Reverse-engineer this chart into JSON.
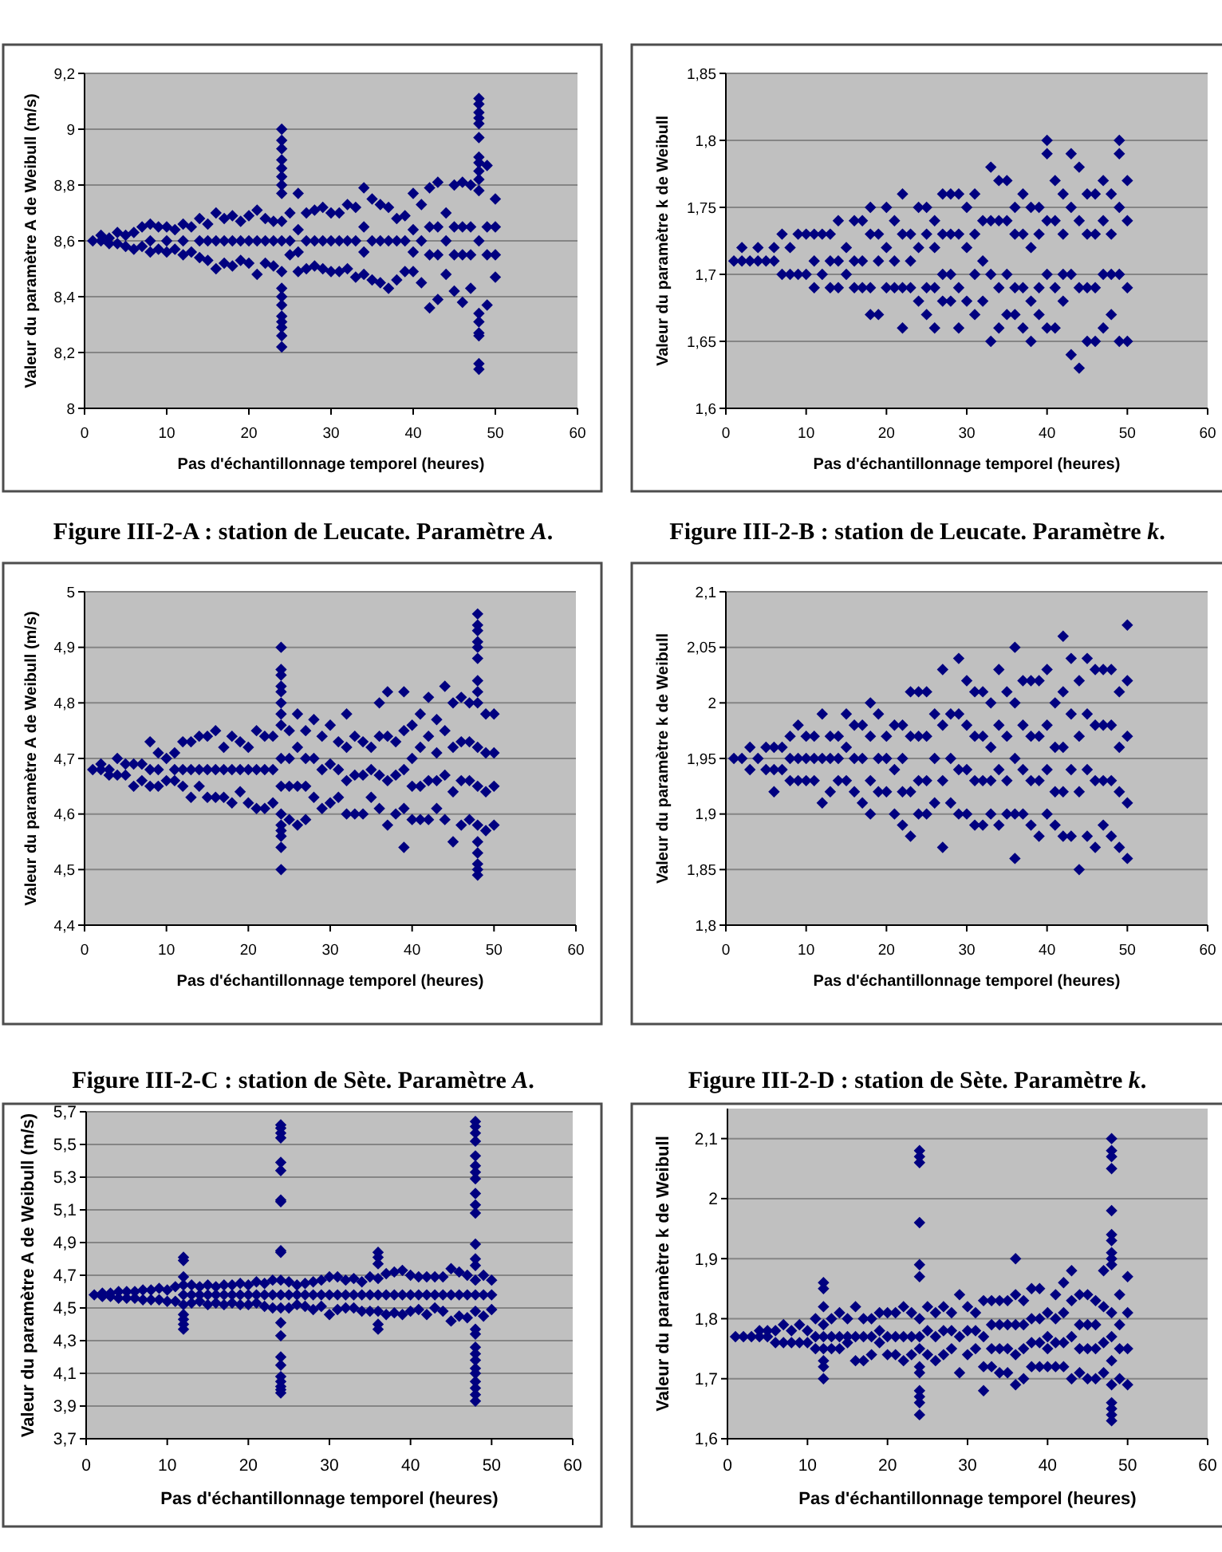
{
  "chart_data": [
    {
      "type": "scatter",
      "xlabel": "Pas d'échantillonnage temporel (heures)",
      "ylabel": "Valeur du paramètre A de Weibull (m/s)",
      "annotations": [
        "Figure III-2-A : station de Leucate. Paramètre A."
      ],
      "xlim": [
        0,
        60
      ],
      "xticks": [
        0,
        10,
        20,
        30,
        40,
        50,
        60
      ],
      "ylim": [
        8,
        9.2
      ],
      "yticks": [
        8,
        {
          "value": 8.2,
          "label": "8,2"
        },
        {
          "value": 8.4,
          "label": "8,4"
        },
        {
          "value": 8.6,
          "label": "8,6"
        },
        {
          "value": 8.8,
          "label": "8,8"
        },
        9,
        {
          "value": 9.2,
          "label": "9,2"
        }
      ],
      "grid": "y",
      "marker": "diamond",
      "color": "#000080",
      "x": [
        1,
        2,
        2,
        3,
        3,
        4,
        4,
        5,
        5,
        6,
        6,
        7,
        7,
        8,
        8,
        8,
        9,
        9,
        10,
        10,
        10,
        11,
        11,
        12,
        12,
        12,
        13,
        13,
        14,
        14,
        14,
        15,
        15,
        15,
        16,
        16,
        16,
        17,
        17,
        17,
        18,
        18,
        18,
        19,
        19,
        19,
        20,
        20,
        20,
        21,
        21,
        21,
        22,
        22,
        22,
        23,
        23,
        23,
        24,
        24,
        24,
        24,
        24,
        24,
        24,
        24,
        24,
        24,
        24,
        24,
        24,
        24,
        24,
        24,
        24,
        24,
        24,
        25,
        25,
        25,
        26,
        26,
        26,
        26,
        27,
        27,
        27,
        28,
        28,
        28,
        29,
        29,
        29,
        30,
        30,
        30,
        31,
        31,
        31,
        32,
        32,
        32,
        33,
        33,
        33,
        34,
        34,
        34,
        34,
        35,
        35,
        35,
        36,
        36,
        36,
        37,
        37,
        37,
        38,
        38,
        38,
        39,
        39,
        39,
        40,
        40,
        40,
        40,
        41,
        41,
        41,
        42,
        42,
        42,
        42,
        43,
        43,
        43,
        43,
        44,
        44,
        44,
        45,
        45,
        45,
        45,
        46,
        46,
        46,
        46,
        47,
        47,
        47,
        47,
        48,
        48,
        48,
        48,
        48,
        48,
        48,
        48,
        48,
        48,
        48,
        48,
        48,
        48,
        48,
        48,
        48,
        48,
        49,
        49,
        49,
        49,
        50,
        50,
        50,
        50
      ],
      "values": [
        8.6,
        8.62,
        8.6,
        8.61,
        8.59,
        8.63,
        8.59,
        8.62,
        8.58,
        8.63,
        8.57,
        8.65,
        8.58,
        8.66,
        8.6,
        8.56,
        8.65,
        8.57,
        8.65,
        8.6,
        8.56,
        8.64,
        8.57,
        8.66,
        8.6,
        8.55,
        8.65,
        8.56,
        8.68,
        8.6,
        8.54,
        8.66,
        8.6,
        8.53,
        8.7,
        8.6,
        8.5,
        8.68,
        8.6,
        8.52,
        8.69,
        8.6,
        8.51,
        8.67,
        8.6,
        8.53,
        8.69,
        8.6,
        8.52,
        8.71,
        8.6,
        8.48,
        8.68,
        8.6,
        8.52,
        8.67,
        8.6,
        8.51,
        9,
        8.96,
        8.93,
        8.89,
        8.86,
        8.83,
        8.8,
        8.77,
        8.67,
        8.6,
        8.49,
        8.43,
        8.4,
        8.37,
        8.33,
        8.31,
        8.29,
        8.26,
        8.22,
        8.7,
        8.6,
        8.55,
        8.77,
        8.64,
        8.56,
        8.49,
        8.7,
        8.6,
        8.5,
        8.71,
        8.6,
        8.51,
        8.72,
        8.6,
        8.5,
        8.7,
        8.6,
        8.49,
        8.7,
        8.6,
        8.49,
        8.73,
        8.6,
        8.5,
        8.72,
        8.6,
        8.47,
        8.79,
        8.65,
        8.56,
        8.48,
        8.75,
        8.6,
        8.46,
        8.73,
        8.6,
        8.45,
        8.72,
        8.6,
        8.43,
        8.68,
        8.6,
        8.46,
        8.69,
        8.6,
        8.49,
        8.77,
        8.64,
        8.56,
        8.49,
        8.73,
        8.6,
        8.45,
        8.79,
        8.65,
        8.55,
        8.36,
        8.81,
        8.65,
        8.55,
        8.39,
        8.7,
        8.6,
        8.48,
        8.8,
        8.65,
        8.55,
        8.42,
        8.81,
        8.65,
        8.55,
        8.38,
        8.8,
        8.65,
        8.55,
        8.43,
        9.11,
        9.09,
        9.06,
        9.04,
        9.02,
        8.97,
        8.9,
        8.88,
        8.85,
        8.82,
        8.78,
        8.6,
        8.34,
        8.31,
        8.27,
        8.26,
        8.16,
        8.14,
        8.87,
        8.65,
        8.55,
        8.37,
        8.75,
        8.65,
        8.55,
        8.47
      ]
    },
    {
      "type": "scatter",
      "xlabel": "Pas d'échantillonnage temporel (heures)",
      "ylabel": "Valeur du paramètre k de Weibull",
      "annotations": [
        "Figure III-2-B : station de Leucate. Paramètre k."
      ],
      "xlim": [
        0,
        60
      ],
      "xticks": [
        0,
        10,
        20,
        30,
        40,
        50,
        60
      ],
      "ylim": [
        1.6,
        1.85
      ],
      "yticks": [
        {
          "value": 1.6,
          "label": "1,6"
        },
        {
          "value": 1.65,
          "label": "1,65"
        },
        {
          "value": 1.7,
          "label": "1,7"
        },
        {
          "value": 1.75,
          "label": "1,75"
        },
        {
          "value": 1.8,
          "label": "1,8"
        },
        {
          "value": 1.85,
          "label": "1,85"
        }
      ],
      "grid": "y",
      "marker": "diamond",
      "color": "#000080",
      "x": [
        1,
        2,
        2,
        3,
        4,
        4,
        5,
        6,
        6,
        7,
        7,
        8,
        8,
        9,
        9,
        10,
        10,
        11,
        11,
        11,
        12,
        12,
        13,
        13,
        13,
        14,
        14,
        14,
        15,
        15,
        16,
        16,
        16,
        17,
        17,
        17,
        18,
        18,
        18,
        18,
        19,
        19,
        19,
        20,
        20,
        20,
        21,
        21,
        21,
        22,
        22,
        22,
        22,
        23,
        23,
        23,
        24,
        24,
        24,
        25,
        25,
        25,
        25,
        26,
        26,
        26,
        26,
        27,
        27,
        27,
        27,
        28,
        28,
        28,
        28,
        29,
        29,
        29,
        29,
        30,
        30,
        30,
        31,
        31,
        31,
        31,
        32,
        32,
        32,
        33,
        33,
        33,
        33,
        34,
        34,
        34,
        34,
        35,
        35,
        35,
        35,
        36,
        36,
        36,
        36,
        37,
        37,
        37,
        37,
        38,
        38,
        38,
        38,
        39,
        39,
        39,
        39,
        40,
        40,
        40,
        40,
        40,
        41,
        41,
        41,
        41,
        42,
        42,
        42,
        42,
        43,
        43,
        43,
        43,
        44,
        44,
        44,
        44,
        45,
        45,
        45,
        45,
        46,
        46,
        46,
        46,
        47,
        47,
        47,
        47,
        48,
        48,
        48,
        48,
        49,
        49,
        49,
        49,
        49,
        50,
        50,
        50,
        50
      ],
      "values": [
        1.71,
        1.72,
        1.71,
        1.71,
        1.72,
        1.71,
        1.71,
        1.72,
        1.71,
        1.73,
        1.7,
        1.72,
        1.7,
        1.73,
        1.7,
        1.73,
        1.7,
        1.73,
        1.71,
        1.69,
        1.73,
        1.7,
        1.73,
        1.71,
        1.69,
        1.74,
        1.71,
        1.69,
        1.72,
        1.7,
        1.74,
        1.71,
        1.69,
        1.74,
        1.71,
        1.69,
        1.75,
        1.73,
        1.69,
        1.67,
        1.73,
        1.71,
        1.67,
        1.75,
        1.72,
        1.69,
        1.74,
        1.71,
        1.69,
        1.76,
        1.73,
        1.69,
        1.66,
        1.73,
        1.71,
        1.69,
        1.75,
        1.72,
        1.68,
        1.75,
        1.73,
        1.69,
        1.67,
        1.74,
        1.72,
        1.69,
        1.66,
        1.76,
        1.73,
        1.7,
        1.68,
        1.76,
        1.73,
        1.7,
        1.68,
        1.76,
        1.73,
        1.69,
        1.66,
        1.75,
        1.72,
        1.68,
        1.76,
        1.73,
        1.7,
        1.67,
        1.74,
        1.71,
        1.68,
        1.78,
        1.74,
        1.7,
        1.65,
        1.77,
        1.74,
        1.69,
        1.66,
        1.77,
        1.74,
        1.7,
        1.67,
        1.75,
        1.73,
        1.69,
        1.67,
        1.76,
        1.73,
        1.69,
        1.66,
        1.75,
        1.72,
        1.68,
        1.65,
        1.75,
        1.73,
        1.69,
        1.67,
        1.8,
        1.79,
        1.74,
        1.7,
        1.66,
        1.77,
        1.74,
        1.69,
        1.66,
        1.76,
        1.73,
        1.7,
        1.68,
        1.79,
        1.75,
        1.7,
        1.64,
        1.78,
        1.74,
        1.69,
        1.63,
        1.76,
        1.73,
        1.69,
        1.65,
        1.76,
        1.73,
        1.69,
        1.65,
        1.77,
        1.74,
        1.7,
        1.66,
        1.76,
        1.73,
        1.7,
        1.67,
        1.8,
        1.79,
        1.75,
        1.7,
        1.65,
        1.77,
        1.74,
        1.69,
        1.65
      ]
    },
    {
      "type": "scatter",
      "xlabel": "Pas d'échantillonnage temporel (heures)",
      "ylabel": "Valeur du paramètre A de Weibull (m/s)",
      "annotations": [
        "Figure III-2-C : station de Sète. Paramètre A."
      ],
      "xlim": [
        0,
        60
      ],
      "xticks": [
        0,
        10,
        20,
        30,
        40,
        50,
        60
      ],
      "ylim": [
        4.4,
        5
      ],
      "yticks": [
        {
          "value": 4.4,
          "label": "4,4"
        },
        {
          "value": 4.5,
          "label": "4,5"
        },
        {
          "value": 4.6,
          "label": "4,6"
        },
        {
          "value": 4.7,
          "label": "4,7"
        },
        {
          "value": 4.8,
          "label": "4,8"
        },
        {
          "value": 4.9,
          "label": "4,9"
        },
        5
      ],
      "grid": "y",
      "marker": "diamond",
      "color": "#000080",
      "x": [
        1,
        2,
        2,
        3,
        3,
        4,
        4,
        5,
        5,
        6,
        6,
        7,
        7,
        8,
        8,
        8,
        9,
        9,
        9,
        10,
        10,
        11,
        11,
        11,
        12,
        12,
        12,
        13,
        13,
        13,
        14,
        14,
        14,
        15,
        15,
        15,
        16,
        16,
        16,
        17,
        17,
        17,
        18,
        18,
        18,
        19,
        19,
        19,
        20,
        20,
        20,
        21,
        21,
        21,
        22,
        22,
        22,
        23,
        23,
        23,
        24,
        24,
        24,
        24,
        24,
        24,
        24,
        24,
        24,
        24,
        24,
        24,
        24,
        24,
        24,
        24,
        25,
        25,
        25,
        25,
        26,
        26,
        26,
        26,
        27,
        27,
        27,
        27,
        28,
        28,
        28,
        29,
        29,
        29,
        30,
        30,
        30,
        31,
        31,
        31,
        32,
        32,
        32,
        32,
        33,
        33,
        33,
        34,
        34,
        34,
        35,
        35,
        35,
        36,
        36,
        36,
        36,
        37,
        37,
        37,
        37,
        38,
        38,
        38,
        39,
        39,
        39,
        39,
        39,
        40,
        40,
        40,
        40,
        41,
        41,
        41,
        41,
        42,
        42,
        42,
        42,
        43,
        43,
        43,
        43,
        44,
        44,
        44,
        44,
        45,
        45,
        45,
        45,
        46,
        46,
        46,
        46,
        47,
        47,
        47,
        47,
        48,
        48,
        48,
        48,
        48,
        48,
        48,
        48,
        48,
        48,
        48,
        48,
        48,
        48,
        48,
        48,
        48,
        49,
        49,
        49,
        49,
        50,
        50,
        50,
        50
      ],
      "values": [
        4.68,
        4.69,
        4.68,
        4.68,
        4.67,
        4.7,
        4.67,
        4.69,
        4.67,
        4.69,
        4.65,
        4.69,
        4.66,
        4.73,
        4.68,
        4.65,
        4.71,
        4.68,
        4.65,
        4.7,
        4.66,
        4.71,
        4.68,
        4.66,
        4.73,
        4.68,
        4.65,
        4.73,
        4.68,
        4.63,
        4.74,
        4.68,
        4.65,
        4.74,
        4.68,
        4.63,
        4.75,
        4.68,
        4.63,
        4.72,
        4.68,
        4.63,
        4.74,
        4.68,
        4.62,
        4.73,
        4.68,
        4.64,
        4.72,
        4.68,
        4.62,
        4.75,
        4.68,
        4.61,
        4.74,
        4.68,
        4.61,
        4.74,
        4.68,
        4.62,
        4.9,
        4.86,
        4.85,
        4.83,
        4.82,
        4.8,
        4.78,
        4.76,
        4.7,
        4.65,
        4.6,
        4.58,
        4.57,
        4.56,
        4.54,
        4.5,
        4.75,
        4.7,
        4.65,
        4.59,
        4.78,
        4.72,
        4.65,
        4.58,
        4.75,
        4.7,
        4.65,
        4.59,
        4.77,
        4.7,
        4.63,
        4.74,
        4.68,
        4.61,
        4.76,
        4.69,
        4.62,
        4.73,
        4.68,
        4.63,
        4.78,
        4.72,
        4.66,
        4.6,
        4.74,
        4.67,
        4.6,
        4.73,
        4.67,
        4.6,
        4.72,
        4.68,
        4.63,
        4.8,
        4.74,
        4.67,
        4.61,
        4.82,
        4.74,
        4.66,
        4.58,
        4.73,
        4.67,
        4.6,
        4.82,
        4.75,
        4.68,
        4.61,
        4.54,
        4.76,
        4.7,
        4.65,
        4.59,
        4.78,
        4.72,
        4.65,
        4.59,
        4.81,
        4.74,
        4.66,
        4.59,
        4.77,
        4.71,
        4.66,
        4.61,
        4.83,
        4.75,
        4.67,
        4.59,
        4.8,
        4.72,
        4.64,
        4.55,
        4.81,
        4.73,
        4.66,
        4.58,
        4.8,
        4.73,
        4.66,
        4.59,
        4.96,
        4.94,
        4.93,
        4.91,
        4.9,
        4.88,
        4.84,
        4.82,
        4.8,
        4.72,
        4.65,
        4.58,
        4.55,
        4.53,
        4.51,
        4.5,
        4.49,
        4.78,
        4.71,
        4.64,
        4.57,
        4.78,
        4.71,
        4.65,
        4.58
      ]
    },
    {
      "type": "scatter",
      "xlabel": "Pas d'échantillonnage temporel (heures)",
      "ylabel": "Valeur du paramètre k de Weibull",
      "annotations": [
        "Figure III-2-D : station de Sète. Paramètre k."
      ],
      "xlim": [
        0,
        60
      ],
      "xticks": [
        0,
        10,
        20,
        30,
        40,
        50,
        60
      ],
      "ylim": [
        1.8,
        2.1
      ],
      "yticks": [
        {
          "value": 1.8,
          "label": "1,8"
        },
        {
          "value": 1.85,
          "label": "1,85"
        },
        {
          "value": 1.9,
          "label": "1,9"
        },
        {
          "value": 1.95,
          "label": "1,95"
        },
        2,
        {
          "value": 2.05,
          "label": "2,05"
        },
        {
          "value": 2.1,
          "label": "2,1"
        }
      ],
      "grid": "y",
      "marker": "diamond",
      "color": "#000080",
      "x": [
        1,
        2,
        3,
        3,
        4,
        5,
        5,
        6,
        6,
        6,
        7,
        7,
        8,
        8,
        8,
        9,
        9,
        9,
        10,
        10,
        10,
        11,
        11,
        11,
        12,
        12,
        12,
        13,
        13,
        13,
        14,
        14,
        14,
        15,
        15,
        15,
        16,
        16,
        16,
        17,
        17,
        17,
        18,
        18,
        18,
        18,
        19,
        19,
        19,
        20,
        20,
        20,
        21,
        21,
        21,
        22,
        22,
        22,
        22,
        23,
        23,
        23,
        23,
        24,
        24,
        24,
        24,
        25,
        25,
        25,
        25,
        26,
        26,
        26,
        27,
        27,
        27,
        27,
        28,
        28,
        28,
        29,
        29,
        29,
        29,
        30,
        30,
        30,
        30,
        31,
        31,
        31,
        31,
        32,
        32,
        32,
        32,
        33,
        33,
        33,
        33,
        34,
        34,
        34,
        34,
        35,
        35,
        35,
        35,
        36,
        36,
        36,
        36,
        36,
        37,
        37,
        37,
        37,
        38,
        38,
        38,
        38,
        39,
        39,
        39,
        39,
        40,
        40,
        40,
        40,
        41,
        41,
        41,
        41,
        42,
        42,
        42,
        42,
        42,
        43,
        43,
        43,
        43,
        44,
        44,
        44,
        44,
        45,
        45,
        45,
        45,
        46,
        46,
        46,
        46,
        47,
        47,
        47,
        47,
        48,
        48,
        48,
        48,
        49,
        49,
        49,
        49,
        50,
        50,
        50,
        50,
        50
      ],
      "values": [
        1.95,
        1.95,
        1.96,
        1.94,
        1.95,
        1.96,
        1.94,
        1.96,
        1.94,
        1.92,
        1.96,
        1.94,
        1.97,
        1.95,
        1.93,
        1.98,
        1.95,
        1.93,
        1.97,
        1.95,
        1.93,
        1.97,
        1.95,
        1.93,
        1.99,
        1.95,
        1.91,
        1.97,
        1.95,
        1.92,
        1.97,
        1.95,
        1.93,
        1.99,
        1.96,
        1.93,
        1.98,
        1.95,
        1.92,
        1.98,
        1.95,
        1.91,
        2,
        1.97,
        1.93,
        1.9,
        1.99,
        1.95,
        1.92,
        1.97,
        1.95,
        1.92,
        1.98,
        1.94,
        1.9,
        1.98,
        1.95,
        1.92,
        1.89,
        2.01,
        1.97,
        1.92,
        1.88,
        2.01,
        1.97,
        1.93,
        1.9,
        2.01,
        1.97,
        1.93,
        1.9,
        1.99,
        1.95,
        1.91,
        2.03,
        1.98,
        1.93,
        1.87,
        1.99,
        1.95,
        1.91,
        2.04,
        1.99,
        1.94,
        1.9,
        2.02,
        1.98,
        1.94,
        1.9,
        2.01,
        1.97,
        1.93,
        1.89,
        2.01,
        1.97,
        1.93,
        1.89,
        2,
        1.96,
        1.93,
        1.9,
        2.03,
        1.98,
        1.94,
        1.89,
        2.01,
        1.97,
        1.93,
        1.9,
        2.05,
        2,
        1.95,
        1.9,
        1.86,
        2.02,
        1.98,
        1.94,
        1.9,
        2.02,
        1.97,
        1.93,
        1.89,
        2.02,
        1.97,
        1.93,
        1.88,
        2.03,
        1.98,
        1.94,
        1.9,
        2,
        1.96,
        1.92,
        1.89,
        2.06,
        2.01,
        1.96,
        1.92,
        1.88,
        2.04,
        1.99,
        1.94,
        1.88,
        2.02,
        1.97,
        1.92,
        1.85,
        2.04,
        1.99,
        1.94,
        1.88,
        2.03,
        1.98,
        1.93,
        1.87,
        2.03,
        1.98,
        1.93,
        1.89,
        2.03,
        1.98,
        1.93,
        1.88,
        2.01,
        1.96,
        1.92,
        1.87,
        2.07,
        2.02,
        1.97,
        1.91,
        1.86
      ]
    },
    {
      "type": "scatter",
      "xlabel": "Pas d'échantillonnage temporel (heures)",
      "ylabel": "Valeur du paramètre A de Weibull (m/s)",
      "xlim": [
        0,
        60
      ],
      "xticks": [
        0,
        10,
        20,
        30,
        40,
        50,
        60
      ],
      "ylim": [
        3.7,
        5.7
      ],
      "yticks": [
        {
          "value": 3.7,
          "label": "3,7"
        },
        {
          "value": 3.9,
          "label": "3,9"
        },
        {
          "value": 4.1,
          "label": "4,1"
        },
        {
          "value": 4.3,
          "label": "4,3"
        },
        {
          "value": 4.5,
          "label": "4,5"
        },
        {
          "value": 4.7,
          "label": "4,7"
        },
        {
          "value": 4.9,
          "label": "4,9"
        },
        {
          "value": 5.1,
          "label": "5,1"
        },
        {
          "value": 5.3,
          "label": "5,3"
        },
        {
          "value": 5.5,
          "label": "5,5"
        },
        {
          "value": 5.7,
          "label": "5,7"
        }
      ],
      "grid": "y",
      "marker": "diamond",
      "color": "#000080",
      "x": [
        1,
        2,
        2,
        3,
        3,
        4,
        4,
        5,
        5,
        6,
        6,
        7,
        7,
        8,
        8,
        9,
        9,
        10,
        10,
        11,
        11,
        12,
        12,
        12,
        12,
        12,
        12,
        12,
        12,
        12,
        12,
        13,
        13,
        13,
        14,
        14,
        14,
        15,
        15,
        15,
        16,
        16,
        16,
        17,
        17,
        17,
        18,
        18,
        18,
        19,
        19,
        19,
        20,
        20,
        20,
        21,
        21,
        21,
        22,
        22,
        22,
        23,
        23,
        23,
        24,
        24,
        24,
        24,
        24,
        24,
        24,
        24,
        24,
        24,
        24,
        24,
        24,
        24,
        24,
        24,
        24,
        24,
        24,
        24,
        24,
        24,
        25,
        25,
        25,
        26,
        26,
        26,
        27,
        27,
        27,
        28,
        28,
        28,
        29,
        29,
        29,
        30,
        30,
        30,
        31,
        31,
        31,
        32,
        32,
        32,
        33,
        33,
        33,
        34,
        34,
        34,
        35,
        35,
        35,
        36,
        36,
        36,
        36,
        36,
        36,
        36,
        36,
        37,
        37,
        37,
        38,
        38,
        38,
        39,
        39,
        39,
        40,
        40,
        40,
        41,
        41,
        41,
        42,
        42,
        42,
        43,
        43,
        43,
        44,
        44,
        44,
        45,
        45,
        45,
        46,
        46,
        46,
        47,
        47,
        47,
        48,
        48,
        48,
        48,
        48,
        48,
        48,
        48,
        48,
        48,
        48,
        48,
        48,
        48,
        48,
        48,
        48,
        48,
        48,
        48,
        48,
        48,
        48,
        48,
        48,
        48,
        48,
        48,
        49,
        49,
        49,
        50,
        50,
        50
      ],
      "values": [
        4.58,
        4.59,
        4.57,
        4.59,
        4.57,
        4.6,
        4.56,
        4.6,
        4.56,
        4.6,
        4.56,
        4.61,
        4.55,
        4.61,
        4.55,
        4.62,
        4.55,
        4.61,
        4.54,
        4.63,
        4.54,
        4.81,
        4.79,
        4.69,
        4.64,
        4.58,
        4.52,
        4.46,
        4.43,
        4.4,
        4.37,
        4.64,
        4.58,
        4.53,
        4.63,
        4.58,
        4.54,
        4.64,
        4.58,
        4.52,
        4.63,
        4.58,
        4.53,
        4.64,
        4.58,
        4.52,
        4.64,
        4.58,
        4.53,
        4.65,
        4.58,
        4.52,
        4.64,
        4.58,
        4.52,
        4.66,
        4.58,
        4.53,
        4.65,
        4.58,
        4.51,
        4.67,
        4.58,
        4.5,
        5.62,
        5.6,
        5.57,
        5.54,
        5.39,
        5.34,
        5.16,
        5.15,
        4.85,
        4.84,
        4.67,
        4.58,
        4.5,
        4.41,
        4.33,
        4.2,
        4.15,
        4.08,
        4.05,
        4.02,
        4,
        3.98,
        4.66,
        4.58,
        4.5,
        4.64,
        4.58,
        4.52,
        4.65,
        4.58,
        4.51,
        4.66,
        4.58,
        4.49,
        4.67,
        4.58,
        4.51,
        4.69,
        4.58,
        4.46,
        4.69,
        4.58,
        4.49,
        4.67,
        4.58,
        4.5,
        4.68,
        4.58,
        4.5,
        4.66,
        4.58,
        4.48,
        4.69,
        4.58,
        4.48,
        4.84,
        4.81,
        4.77,
        4.68,
        4.58,
        4.48,
        4.4,
        4.37,
        4.71,
        4.58,
        4.46,
        4.72,
        4.58,
        4.47,
        4.73,
        4.58,
        4.46,
        4.7,
        4.58,
        4.48,
        4.69,
        4.58,
        4.49,
        4.69,
        4.58,
        4.46,
        4.69,
        4.58,
        4.5,
        4.69,
        4.58,
        4.48,
        4.74,
        4.58,
        4.42,
        4.72,
        4.58,
        4.45,
        4.7,
        4.58,
        4.44,
        5.64,
        5.61,
        5.57,
        5.52,
        5.43,
        5.37,
        5.33,
        5.29,
        5.2,
        5.13,
        5.08,
        4.89,
        4.8,
        4.76,
        4.67,
        4.58,
        4.48,
        4.37,
        4.34,
        4.26,
        4.22,
        4.18,
        4.13,
        4.1,
        4.05,
        4.01,
        3.97,
        3.93,
        4.7,
        4.58,
        4.45,
        4.67,
        4.58,
        4.49
      ]
    },
    {
      "type": "scatter",
      "xlabel": "Pas d'échantillonnage temporel (heures)",
      "ylabel": "Valeur du paramètre k de Weibull",
      "xlim": [
        0,
        60
      ],
      "xticks": [
        0,
        10,
        20,
        30,
        40,
        50,
        60
      ],
      "ylim": [
        1.6,
        2.15
      ],
      "yticks": [
        {
          "value": 1.6,
          "label": "1,6"
        },
        {
          "value": 1.7,
          "label": "1,7"
        },
        {
          "value": 1.8,
          "label": "1,8"
        },
        {
          "value": 1.9,
          "label": "1,9"
        },
        2,
        {
          "value": 2.1,
          "label": "2,1"
        }
      ],
      "grid": "y",
      "marker": "diamond",
      "color": "#000080",
      "x": [
        1,
        2,
        3,
        4,
        4,
        5,
        5,
        6,
        6,
        7,
        7,
        8,
        8,
        9,
        9,
        10,
        10,
        11,
        11,
        11,
        12,
        12,
        12,
        12,
        12,
        12,
        12,
        12,
        12,
        13,
        13,
        13,
        14,
        14,
        14,
        15,
        15,
        15,
        16,
        16,
        16,
        17,
        17,
        17,
        18,
        18,
        18,
        19,
        19,
        19,
        20,
        20,
        20,
        21,
        21,
        21,
        22,
        22,
        22,
        23,
        23,
        23,
        24,
        24,
        24,
        24,
        24,
        24,
        24,
        24,
        24,
        24,
        24,
        24,
        24,
        24,
        24,
        25,
        25,
        25,
        26,
        26,
        26,
        27,
        27,
        27,
        28,
        28,
        28,
        29,
        29,
        29,
        30,
        30,
        30,
        31,
        31,
        31,
        32,
        32,
        32,
        32,
        33,
        33,
        33,
        33,
        34,
        34,
        34,
        34,
        35,
        35,
        35,
        35,
        36,
        36,
        36,
        36,
        36,
        37,
        37,
        37,
        37,
        38,
        38,
        38,
        38,
        39,
        39,
        39,
        39,
        40,
        40,
        40,
        40,
        41,
        41,
        41,
        41,
        42,
        42,
        42,
        42,
        43,
        43,
        43,
        43,
        44,
        44,
        44,
        44,
        45,
        45,
        45,
        45,
        46,
        46,
        46,
        46,
        47,
        47,
        47,
        47,
        48,
        48,
        48,
        48,
        48,
        48,
        48,
        48,
        48,
        48,
        48,
        48,
        48,
        48,
        48,
        48,
        48,
        48,
        49,
        49,
        49,
        49,
        50,
        50,
        50,
        50
      ],
      "values": [
        1.77,
        1.77,
        1.77,
        1.78,
        1.77,
        1.78,
        1.77,
        1.78,
        1.76,
        1.79,
        1.76,
        1.78,
        1.76,
        1.79,
        1.76,
        1.78,
        1.76,
        1.8,
        1.77,
        1.75,
        1.86,
        1.85,
        1.82,
        1.79,
        1.77,
        1.75,
        1.73,
        1.72,
        1.7,
        1.8,
        1.77,
        1.75,
        1.81,
        1.77,
        1.75,
        1.8,
        1.77,
        1.76,
        1.82,
        1.77,
        1.73,
        1.8,
        1.77,
        1.73,
        1.8,
        1.77,
        1.74,
        1.81,
        1.78,
        1.76,
        1.81,
        1.77,
        1.74,
        1.81,
        1.77,
        1.74,
        1.82,
        1.77,
        1.73,
        1.81,
        1.77,
        1.74,
        2.08,
        2.07,
        2.06,
        1.96,
        1.89,
        1.87,
        1.8,
        1.77,
        1.75,
        1.72,
        1.71,
        1.68,
        1.67,
        1.66,
        1.64,
        1.82,
        1.78,
        1.74,
        1.81,
        1.77,
        1.73,
        1.82,
        1.78,
        1.74,
        1.81,
        1.78,
        1.75,
        1.84,
        1.77,
        1.71,
        1.82,
        1.78,
        1.74,
        1.81,
        1.78,
        1.75,
        1.83,
        1.77,
        1.72,
        1.68,
        1.83,
        1.79,
        1.75,
        1.72,
        1.83,
        1.79,
        1.75,
        1.71,
        1.83,
        1.79,
        1.75,
        1.71,
        1.9,
        1.84,
        1.79,
        1.74,
        1.69,
        1.83,
        1.79,
        1.75,
        1.7,
        1.85,
        1.8,
        1.76,
        1.72,
        1.85,
        1.8,
        1.76,
        1.72,
        1.81,
        1.77,
        1.75,
        1.72,
        1.84,
        1.8,
        1.76,
        1.72,
        1.86,
        1.81,
        1.76,
        1.72,
        1.88,
        1.83,
        1.77,
        1.7,
        1.84,
        1.79,
        1.75,
        1.71,
        1.84,
        1.79,
        1.75,
        1.7,
        1.83,
        1.79,
        1.75,
        1.7,
        1.88,
        1.82,
        1.76,
        1.71,
        2.1,
        2.08,
        2.07,
        2.05,
        1.98,
        1.94,
        1.93,
        1.91,
        1.9,
        1.89,
        1.81,
        1.77,
        1.73,
        1.69,
        1.66,
        1.65,
        1.64,
        1.63,
        1.84,
        1.79,
        1.75,
        1.7,
        1.87,
        1.81,
        1.75,
        1.69
      ]
    }
  ]
}
